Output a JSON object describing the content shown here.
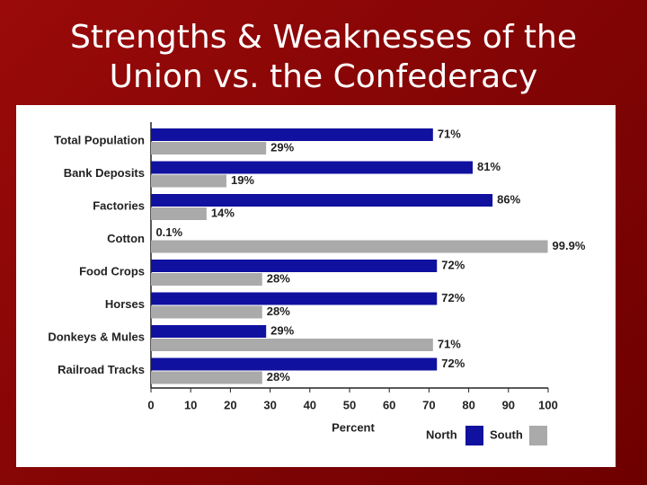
{
  "chart_data": {
    "type": "hbar",
    "title": "Strengths & Weaknesses of the Union vs. the Confederacy",
    "categories": [
      "Total Population",
      "Bank Deposits",
      "Factories",
      "Cotton",
      "Food Crops",
      "Horses",
      "Donkeys & Mules",
      "Railroad Tracks"
    ],
    "series": [
      {
        "name": "North",
        "color": "#1111a0",
        "values": [
          71,
          81,
          86,
          0.1,
          72,
          72,
          29,
          72
        ],
        "value_labels": [
          "71%",
          "81%",
          "86%",
          "0.1%",
          "72%",
          "72%",
          "29%",
          "72%"
        ]
      },
      {
        "name": "South",
        "color": "#aaaaaa",
        "values": [
          29,
          19,
          14,
          99.9,
          28,
          28,
          71,
          28
        ],
        "value_labels": [
          "29%",
          "19%",
          "14%",
          "99.9%",
          "28%",
          "28%",
          "71%",
          "28%"
        ]
      }
    ],
    "xlabel": "Percent",
    "xlim": [
      0,
      100
    ],
    "xticks": [
      0,
      10,
      20,
      30,
      40,
      50,
      60,
      70,
      80,
      90,
      100
    ],
    "legend": "bottom-right"
  }
}
